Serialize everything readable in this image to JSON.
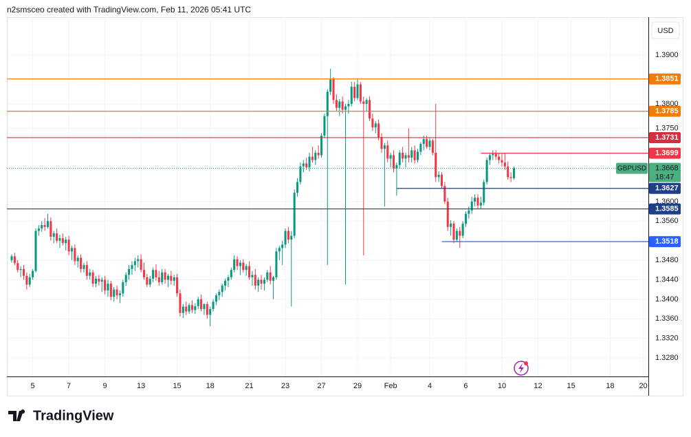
{
  "header": {
    "text": "n2smsceo created with TradingView.com, Feb 11, 2026 05:41 UTC"
  },
  "footer": {
    "logo": "TradingView"
  },
  "chart_data": {
    "type": "candlestick",
    "currency": "USD",
    "up_color": "#089981",
    "down_color": "#f23645",
    "ohlc": [
      [
        1.348,
        1.3492,
        1.3475,
        1.3488
      ],
      [
        1.3488,
        1.3495,
        1.347,
        1.3474
      ],
      [
        1.3474,
        1.348,
        1.3455,
        1.346
      ],
      [
        1.346,
        1.3468,
        1.3445,
        1.3462
      ],
      [
        1.3462,
        1.347,
        1.344,
        1.3448
      ],
      [
        1.3448,
        1.3455,
        1.342,
        1.343
      ],
      [
        1.343,
        1.3452,
        1.3425,
        1.3445
      ],
      [
        1.3445,
        1.3462,
        1.344,
        1.3458
      ],
      [
        1.3458,
        1.3545,
        1.3455,
        1.354
      ],
      [
        1.354,
        1.3552,
        1.353,
        1.3545
      ],
      [
        1.3545,
        1.356,
        1.3538,
        1.3552
      ],
      [
        1.3552,
        1.3566,
        1.354,
        1.3548
      ],
      [
        1.3548,
        1.3575,
        1.3545,
        1.356
      ],
      [
        1.356,
        1.3568,
        1.352,
        1.3528
      ],
      [
        1.3528,
        1.354,
        1.3515,
        1.3535
      ],
      [
        1.3535,
        1.3545,
        1.3515,
        1.352
      ],
      [
        1.352,
        1.3532,
        1.3505,
        1.3525
      ],
      [
        1.3525,
        1.3535,
        1.351,
        1.3515
      ],
      [
        1.3515,
        1.3528,
        1.35,
        1.3522
      ],
      [
        1.3522,
        1.353,
        1.349,
        1.3498
      ],
      [
        1.3498,
        1.351,
        1.348,
        1.3505
      ],
      [
        1.3505,
        1.3512,
        1.347,
        1.3478
      ],
      [
        1.3478,
        1.349,
        1.3465,
        1.3485
      ],
      [
        1.3485,
        1.3492,
        1.3455,
        1.3462
      ],
      [
        1.3462,
        1.3475,
        1.3455,
        1.347
      ],
      [
        1.347,
        1.3478,
        1.344,
        1.3448
      ],
      [
        1.3448,
        1.3462,
        1.344,
        1.3455
      ],
      [
        1.3455,
        1.346,
        1.3425,
        1.3432
      ],
      [
        1.3432,
        1.3448,
        1.3425,
        1.3442
      ],
      [
        1.3442,
        1.345,
        1.3428,
        1.3436
      ],
      [
        1.3436,
        1.3445,
        1.3415,
        1.344
      ],
      [
        1.344,
        1.3448,
        1.341,
        1.3418
      ],
      [
        1.3418,
        1.344,
        1.3405,
        1.3432
      ],
      [
        1.3432,
        1.3438,
        1.3398,
        1.3405
      ],
      [
        1.3405,
        1.3425,
        1.3395,
        1.342
      ],
      [
        1.342,
        1.3428,
        1.34,
        1.3408
      ],
      [
        1.3408,
        1.3418,
        1.3392,
        1.3412
      ],
      [
        1.3412,
        1.344,
        1.3405,
        1.3435
      ],
      [
        1.3435,
        1.3455,
        1.3428,
        1.345
      ],
      [
        1.345,
        1.347,
        1.344,
        1.3462
      ],
      [
        1.3462,
        1.3478,
        1.345,
        1.347
      ],
      [
        1.347,
        1.3485,
        1.3458,
        1.3478
      ],
      [
        1.3478,
        1.349,
        1.3465,
        1.3482
      ],
      [
        1.3482,
        1.3492,
        1.3455,
        1.346
      ],
      [
        1.346,
        1.3475,
        1.344,
        1.3445
      ],
      [
        1.3445,
        1.3452,
        1.3425,
        1.343
      ],
      [
        1.343,
        1.3448,
        1.3425,
        1.3442
      ],
      [
        1.3442,
        1.3465,
        1.3435,
        1.346
      ],
      [
        1.346,
        1.3472,
        1.3438,
        1.3445
      ],
      [
        1.3445,
        1.3458,
        1.3428,
        1.3435
      ],
      [
        1.3435,
        1.3462,
        1.343,
        1.3455
      ],
      [
        1.3455,
        1.3462,
        1.3432,
        1.344
      ],
      [
        1.344,
        1.3452,
        1.3425,
        1.3448
      ],
      [
        1.3448,
        1.3458,
        1.343,
        1.3438
      ],
      [
        1.3438,
        1.345,
        1.3428,
        1.3445
      ],
      [
        1.3445,
        1.3452,
        1.3405,
        1.3412
      ],
      [
        1.3412,
        1.342,
        1.3365,
        1.3372
      ],
      [
        1.3372,
        1.339,
        1.3362,
        1.3385
      ],
      [
        1.3385,
        1.3395,
        1.3368,
        1.3375
      ],
      [
        1.3375,
        1.3392,
        1.337,
        1.3388
      ],
      [
        1.3388,
        1.3398,
        1.3372,
        1.3378
      ],
      [
        1.3378,
        1.3392,
        1.337,
        1.3386
      ],
      [
        1.3386,
        1.3405,
        1.338,
        1.34
      ],
      [
        1.34,
        1.341,
        1.3375,
        1.338
      ],
      [
        1.338,
        1.3392,
        1.3368,
        1.339
      ],
      [
        1.339,
        1.3395,
        1.336,
        1.3368
      ],
      [
        1.3368,
        1.3385,
        1.3345,
        1.338
      ],
      [
        1.338,
        1.34,
        1.3375,
        1.3395
      ],
      [
        1.3395,
        1.3412,
        1.3388,
        1.3408
      ],
      [
        1.3408,
        1.342,
        1.3398,
        1.3415
      ],
      [
        1.3415,
        1.3432,
        1.3405,
        1.3428
      ],
      [
        1.3428,
        1.3442,
        1.3418,
        1.3438
      ],
      [
        1.3438,
        1.345,
        1.3425,
        1.3445
      ],
      [
        1.3445,
        1.3465,
        1.344,
        1.346
      ],
      [
        1.346,
        1.349,
        1.3455,
        1.3482
      ],
      [
        1.3482,
        1.3488,
        1.346,
        1.3468
      ],
      [
        1.3468,
        1.348,
        1.345,
        1.3475
      ],
      [
        1.3475,
        1.3482,
        1.3455,
        1.346
      ],
      [
        1.346,
        1.3472,
        1.3448,
        1.3468
      ],
      [
        1.3468,
        1.3478,
        1.344,
        1.3445
      ],
      [
        1.3445,
        1.3458,
        1.3428,
        1.345
      ],
      [
        1.345,
        1.3462,
        1.342,
        1.3428
      ],
      [
        1.3428,
        1.3445,
        1.3415,
        1.344
      ],
      [
        1.344,
        1.345,
        1.342,
        1.3432
      ],
      [
        1.3432,
        1.3445,
        1.3418,
        1.344
      ],
      [
        1.344,
        1.346,
        1.3435,
        1.3455
      ],
      [
        1.3455,
        1.3468,
        1.343,
        1.3438
      ],
      [
        1.3438,
        1.3448,
        1.34,
        1.3445
      ],
      [
        1.3445,
        1.3505,
        1.344,
        1.3498
      ],
      [
        1.3498,
        1.351,
        1.348,
        1.3505
      ],
      [
        1.3505,
        1.352,
        1.347,
        1.3512
      ],
      [
        1.3512,
        1.3545,
        1.3505,
        1.354
      ],
      [
        1.354,
        1.3548,
        1.3515,
        1.3522
      ],
      [
        1.3522,
        1.354,
        1.3385,
        1.353
      ],
      [
        1.353,
        1.3625,
        1.3525,
        1.3618
      ],
      [
        1.3618,
        1.3648,
        1.361,
        1.364
      ],
      [
        1.364,
        1.368,
        1.3635,
        1.3672
      ],
      [
        1.3672,
        1.3685,
        1.366,
        1.3678
      ],
      [
        1.3678,
        1.369,
        1.3665,
        1.367
      ],
      [
        1.367,
        1.37,
        1.3662,
        1.3692
      ],
      [
        1.3692,
        1.3712,
        1.368,
        1.3685
      ],
      [
        1.3685,
        1.3705,
        1.3675,
        1.37
      ],
      [
        1.37,
        1.3715,
        1.3688,
        1.3695
      ],
      [
        1.3695,
        1.374,
        1.369,
        1.3735
      ],
      [
        1.3735,
        1.378,
        1.373,
        1.3775
      ],
      [
        1.3775,
        1.383,
        1.347,
        1.3825
      ],
      [
        1.3825,
        1.3872,
        1.3818,
        1.385
      ],
      [
        1.385,
        1.3855,
        1.38,
        1.3808
      ],
      [
        1.3808,
        1.382,
        1.3785,
        1.3792
      ],
      [
        1.3792,
        1.381,
        1.3775,
        1.3805
      ],
      [
        1.3805,
        1.3815,
        1.378,
        1.3788
      ],
      [
        1.3788,
        1.38,
        1.343,
        1.3795
      ],
      [
        1.3795,
        1.3808,
        1.378,
        1.38
      ],
      [
        1.38,
        1.3845,
        1.3795,
        1.3835
      ],
      [
        1.3835,
        1.3845,
        1.3805,
        1.3812
      ],
      [
        1.3812,
        1.385,
        1.3808,
        1.384
      ],
      [
        1.384,
        1.3845,
        1.38,
        1.3805
      ],
      [
        1.3805,
        1.3815,
        1.349,
        1.38
      ],
      [
        1.38,
        1.3812,
        1.3785,
        1.3808
      ],
      [
        1.3808,
        1.3815,
        1.3765,
        1.377
      ],
      [
        1.377,
        1.378,
        1.3745,
        1.3752
      ],
      [
        1.3752,
        1.3765,
        1.374,
        1.376
      ],
      [
        1.376,
        1.3768,
        1.3725,
        1.3732
      ],
      [
        1.3732,
        1.374,
        1.37,
        1.3708
      ],
      [
        1.3708,
        1.372,
        1.359,
        1.3715
      ],
      [
        1.3715,
        1.3725,
        1.368,
        1.3688
      ],
      [
        1.3688,
        1.37,
        1.367,
        1.3695
      ],
      [
        1.3695,
        1.3705,
        1.366,
        1.3668
      ],
      [
        1.3668,
        1.368,
        1.3612,
        1.3675
      ],
      [
        1.3675,
        1.3705,
        1.3668,
        1.37
      ],
      [
        1.37,
        1.3712,
        1.368,
        1.3688
      ],
      [
        1.3688,
        1.37,
        1.367,
        1.3695
      ],
      [
        1.3695,
        1.375,
        1.368,
        1.369
      ],
      [
        1.369,
        1.3712,
        1.368,
        1.3705
      ],
      [
        1.3705,
        1.3715,
        1.3678,
        1.3685
      ],
      [
        1.3685,
        1.3708,
        1.368,
        1.3702
      ],
      [
        1.3702,
        1.3722,
        1.3695,
        1.3718
      ],
      [
        1.3718,
        1.3735,
        1.3705,
        1.3728
      ],
      [
        1.3728,
        1.3735,
        1.3708,
        1.3712
      ],
      [
        1.3712,
        1.373,
        1.3705,
        1.3725
      ],
      [
        1.3725,
        1.3728,
        1.3695,
        1.37
      ],
      [
        1.37,
        1.38,
        1.364,
        1.365
      ],
      [
        1.365,
        1.3662,
        1.364,
        1.3655
      ],
      [
        1.3655,
        1.366,
        1.3628,
        1.3632
      ],
      [
        1.3632,
        1.364,
        1.3595,
        1.36
      ],
      [
        1.36,
        1.3608,
        1.354,
        1.3548
      ],
      [
        1.3548,
        1.3562,
        1.353,
        1.3555
      ],
      [
        1.3555,
        1.356,
        1.3515,
        1.3522
      ],
      [
        1.3522,
        1.3545,
        1.3518,
        1.354
      ],
      [
        1.354,
        1.3548,
        1.3505,
        1.353
      ],
      [
        1.353,
        1.356,
        1.3525,
        1.3555
      ],
      [
        1.3555,
        1.358,
        1.3548,
        1.3575
      ],
      [
        1.3575,
        1.359,
        1.3565,
        1.3582
      ],
      [
        1.3582,
        1.361,
        1.3575,
        1.36
      ],
      [
        1.36,
        1.3615,
        1.359,
        1.3608
      ],
      [
        1.3608,
        1.3615,
        1.3585,
        1.3592
      ],
      [
        1.3592,
        1.361,
        1.3585,
        1.3598
      ],
      [
        1.3598,
        1.3645,
        1.3592,
        1.364
      ],
      [
        1.364,
        1.369,
        1.3635,
        1.3685
      ],
      [
        1.3685,
        1.37,
        1.3675,
        1.3695
      ],
      [
        1.3695,
        1.3705,
        1.3685,
        1.3698
      ],
      [
        1.3698,
        1.3705,
        1.3685,
        1.3692
      ],
      [
        1.3692,
        1.37,
        1.3678,
        1.3685
      ],
      [
        1.3685,
        1.3698,
        1.3672,
        1.368
      ],
      [
        1.368,
        1.37,
        1.3665,
        1.3672
      ],
      [
        1.3672,
        1.3682,
        1.3645,
        1.365
      ],
      [
        1.365,
        1.366,
        1.364,
        1.3648
      ],
      [
        1.3648,
        1.3672,
        1.3645,
        1.3668
      ]
    ],
    "xlim": [
      -1.6,
      211.7
    ],
    "xticks": [
      {
        "value": 7,
        "label": "5"
      },
      {
        "value": 19,
        "label": "7"
      },
      {
        "value": 31,
        "label": "9"
      },
      {
        "value": 43,
        "label": "13"
      },
      {
        "value": 55,
        "label": "15"
      },
      {
        "value": 66,
        "label": "18"
      },
      {
        "value": 79,
        "label": "21"
      },
      {
        "value": 91,
        "label": "23"
      },
      {
        "value": 103,
        "label": "27"
      },
      {
        "value": 115,
        "label": "29"
      },
      {
        "value": 126,
        "label": "Feb"
      },
      {
        "value": 139,
        "label": "4"
      },
      {
        "value": 151,
        "label": "6"
      },
      {
        "value": 163,
        "label": "10"
      },
      {
        "value": 175,
        "label": "12"
      },
      {
        "value": 186,
        "label": "15"
      },
      {
        "value": 199,
        "label": "18"
      },
      {
        "value": 210,
        "label": "20"
      }
    ],
    "ylim": [
      1.3242,
      1.39775
    ],
    "yticks": [
      {
        "value": 1.39,
        "label": "1.3900"
      },
      {
        "value": 1.38,
        "label": "1.3800"
      },
      {
        "value": 1.375,
        "label": "1.3750"
      },
      {
        "value": 1.36,
        "label": "1.3600"
      },
      {
        "value": 1.356,
        "label": "1.3560"
      },
      {
        "value": 1.348,
        "label": "1.3480"
      },
      {
        "value": 1.344,
        "label": "1.3440"
      },
      {
        "value": 1.34,
        "label": "1.3400"
      },
      {
        "value": 1.336,
        "label": "1.3360"
      },
      {
        "value": 1.332,
        "label": "1.3320"
      },
      {
        "value": 1.328,
        "label": "1.3280"
      }
    ],
    "grid": true,
    "levels": [
      {
        "value": 1.3851,
        "color": "#f57c00"
      },
      {
        "value": 1.3785,
        "color": "#f57c00"
      },
      {
        "value": 1.3731,
        "color": "#d32f3f"
      },
      {
        "value": 1.3699,
        "color": "#f23645",
        "from": 156
      },
      {
        "value": 1.3627,
        "color": "#1e3f8a",
        "from": 128
      },
      {
        "value": 1.3585,
        "color": "#1e3f8a"
      },
      {
        "value": 1.3518,
        "color": "#2962ff",
        "from": 143
      }
    ],
    "last_price": {
      "symbol": "GBPUSD",
      "value": 1.3668,
      "countdown": "18:47",
      "color": "#089981"
    }
  }
}
